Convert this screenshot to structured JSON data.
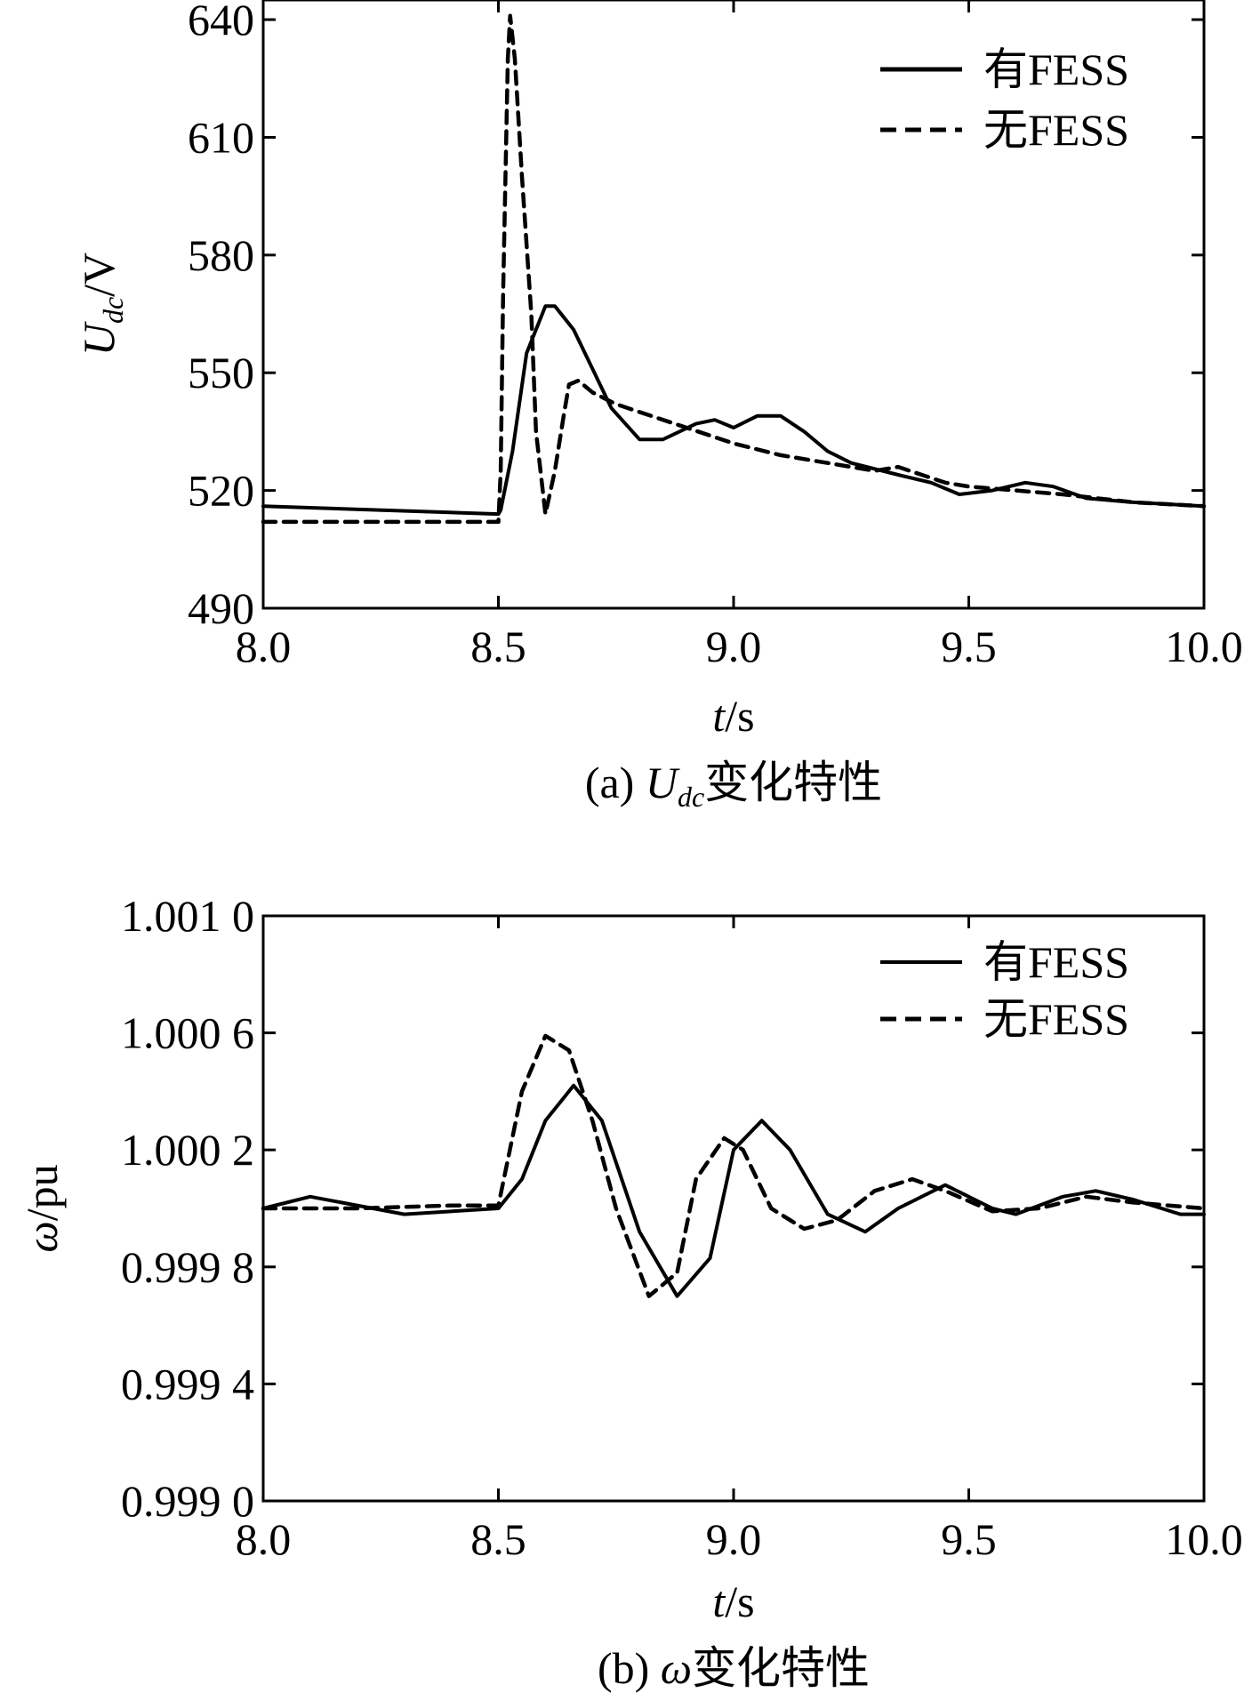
{
  "chart_data": [
    {
      "type": "line",
      "caption": "(a) Udc变化特性",
      "caption_prefix": "(a) ",
      "caption_symbol": "U",
      "caption_sub": "dc",
      "caption_suffix": "变化特性",
      "xlabel_var": "t",
      "xlabel_unit": "/s",
      "ylabel_symbol": "U",
      "ylabel_sub": "dc",
      "ylabel_unit": "/V",
      "xlim": [
        8.0,
        10.0
      ],
      "ylim": [
        490,
        645
      ],
      "xticks": [
        8.0,
        8.5,
        9.0,
        9.5,
        10.0
      ],
      "xtick_labels": [
        "8.0",
        "8.5",
        "9.0",
        "9.5",
        "10.0"
      ],
      "yticks": [
        490,
        520,
        550,
        580,
        610,
        640
      ],
      "ytick_labels": [
        "490",
        "520",
        "550",
        "580",
        "610",
        "640"
      ],
      "legend_position": "top-right",
      "series": [
        {
          "name": "有FESS",
          "style": "solid",
          "x": [
            8.0,
            8.5,
            8.505,
            8.53,
            8.56,
            8.6,
            8.62,
            8.66,
            8.7,
            8.74,
            8.8,
            8.85,
            8.92,
            8.96,
            9.0,
            9.05,
            9.1,
            9.15,
            9.2,
            9.25,
            9.35,
            9.42,
            9.48,
            9.55,
            9.62,
            9.68,
            9.75,
            9.85,
            10.0
          ],
          "values": [
            516,
            514,
            515,
            530,
            555,
            567,
            567,
            561,
            551,
            541,
            533,
            533,
            537,
            538,
            536,
            539,
            539,
            535,
            530,
            527,
            524,
            522,
            519,
            520,
            522,
            521,
            518,
            517,
            516
          ]
        },
        {
          "name": "无FESS",
          "style": "dashed",
          "x": [
            8.0,
            8.5,
            8.505,
            8.51,
            8.52,
            8.525,
            8.535,
            8.55,
            8.57,
            8.58,
            8.6,
            8.62,
            8.64,
            8.65,
            8.67,
            8.7,
            8.75,
            8.8,
            8.9,
            9.0,
            9.1,
            9.2,
            9.3,
            9.35,
            9.4,
            9.45,
            9.5,
            9.6,
            9.7,
            9.85,
            10.0
          ],
          "values": [
            512,
            512,
            525,
            570,
            630,
            641,
            630,
            600,
            565,
            535,
            514,
            525,
            540,
            547,
            548,
            545,
            542,
            540,
            536,
            532,
            529,
            527,
            525,
            526,
            524,
            522,
            521,
            520,
            519,
            517,
            516
          ]
        }
      ]
    },
    {
      "type": "line",
      "caption": "(b) ω变化特性",
      "caption_prefix": "(b) ",
      "caption_symbol": "ω",
      "caption_suffix": "变化特性",
      "xlabel_var": "t",
      "xlabel_unit": "/s",
      "ylabel_symbol": "ω",
      "ylabel_unit": "/pu",
      "xlim": [
        8.0,
        10.0
      ],
      "ylim": [
        0.999,
        1.001
      ],
      "xticks": [
        8.0,
        8.5,
        9.0,
        9.5,
        10.0
      ],
      "xtick_labels": [
        "8.0",
        "8.5",
        "9.0",
        "9.5",
        "10.0"
      ],
      "yticks": [
        0.999,
        0.9994,
        0.9998,
        1.0002,
        1.0006,
        1.001
      ],
      "ytick_labels": [
        "0.999 0",
        "0.999 4",
        "0.999 8",
        "1.000 2",
        "1.000 6",
        "1.001 0"
      ],
      "legend_position": "top-right",
      "series": [
        {
          "name": "有FESS",
          "style": "solid",
          "x": [
            8.0,
            8.1,
            8.3,
            8.5,
            8.55,
            8.6,
            8.66,
            8.72,
            8.8,
            8.88,
            8.95,
            9.0,
            9.06,
            9.12,
            9.2,
            9.28,
            9.35,
            9.45,
            9.55,
            9.6,
            9.7,
            9.77,
            9.85,
            9.95,
            10.0
          ],
          "values": [
            1.0,
            1.00004,
            0.99998,
            1.0,
            1.0001,
            1.0003,
            1.00042,
            1.0003,
            0.99992,
            0.9997,
            0.99983,
            1.0002,
            1.0003,
            1.0002,
            0.99998,
            0.99992,
            1.0,
            1.00008,
            1.0,
            0.99998,
            1.00004,
            1.00006,
            1.00003,
            0.99998,
            0.99998
          ]
        },
        {
          "name": "无FESS",
          "style": "dashed",
          "x": [
            8.0,
            8.2,
            8.4,
            8.5,
            8.55,
            8.6,
            8.65,
            8.7,
            8.75,
            8.82,
            8.88,
            8.92,
            8.98,
            9.02,
            9.08,
            9.15,
            9.22,
            9.3,
            9.38,
            9.45,
            9.55,
            9.65,
            9.75,
            9.85,
            10.0
          ],
          "values": [
            1.0,
            1.0,
            1.00001,
            1.00001,
            1.0004,
            1.00059,
            1.00054,
            1.0003,
            1.0,
            0.9997,
            0.99978,
            1.0001,
            1.00024,
            1.0002,
            1.0,
            0.99993,
            0.99996,
            1.00006,
            1.0001,
            1.00006,
            0.99999,
            1.0,
            1.00004,
            1.00002,
            1.0
          ]
        }
      ]
    }
  ]
}
